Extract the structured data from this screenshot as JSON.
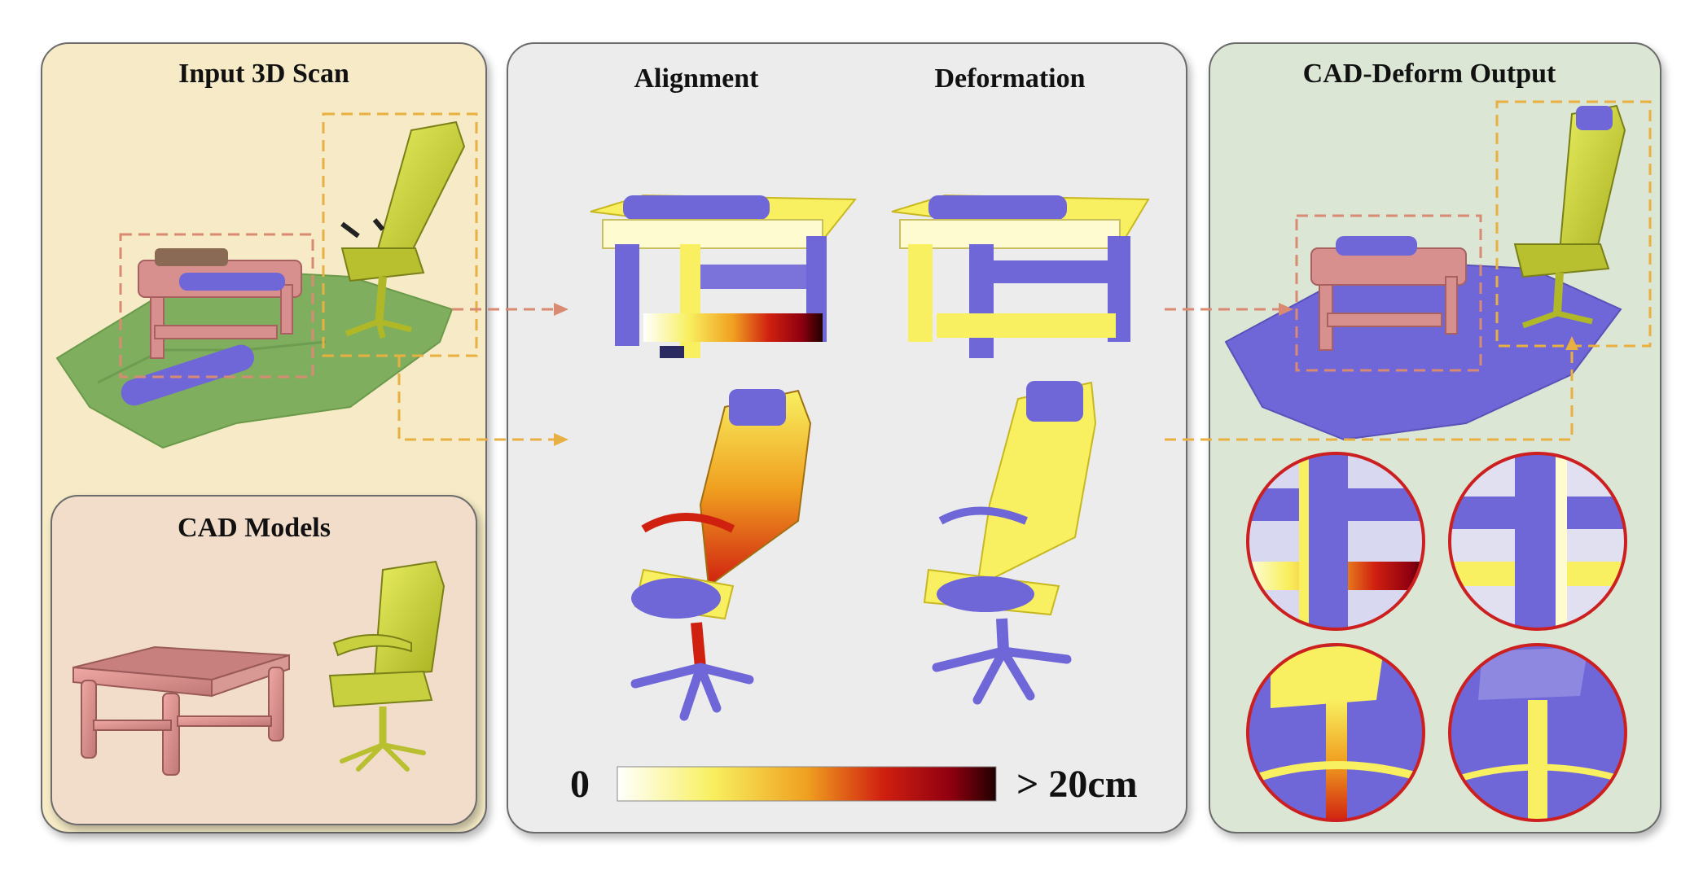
{
  "panels": {
    "input_scan": {
      "title": "Input 3D Scan"
    },
    "cad_models": {
      "title": "CAD Models"
    },
    "middle": {
      "alignment_title": "Alignment",
      "deformation_title": "Deformation"
    },
    "output": {
      "title": "CAD-Deform Output"
    }
  },
  "colorbar": {
    "min_label": "0",
    "max_label": "> 20cm",
    "stops": [
      "#ffffff",
      "#f8f060",
      "#f0a020",
      "#d02010",
      "#900010",
      "#200000"
    ]
  },
  "colors": {
    "scan_panel_bg": "#f6ebc6",
    "cad_panel_bg": "#f2ddcb",
    "middle_panel_bg": "#ececec",
    "output_panel_bg": "#dce6d4",
    "table_marker": "#d98a72",
    "chair_marker": "#e8b040",
    "mesh_blue": "#6f66d8",
    "cad_pink": "#d8908e",
    "cad_yellow": "#c8d040",
    "scan_green": "#7fae5e",
    "zoom_ring": "#cc2020"
  }
}
